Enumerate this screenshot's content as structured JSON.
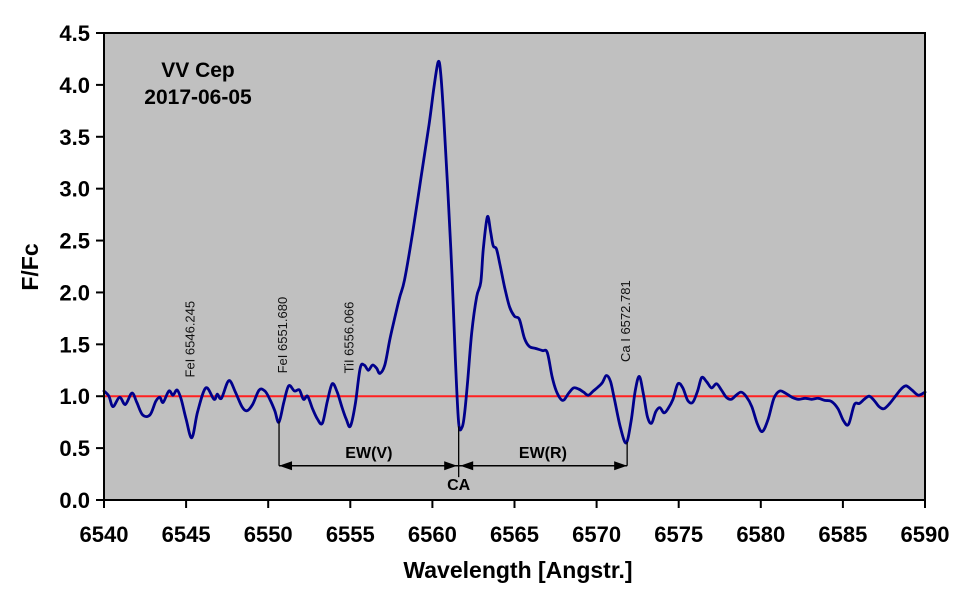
{
  "figure": {
    "title_line1": "VV Cep",
    "title_line2": "2017-06-05",
    "y_axis_label": "F/Fc",
    "x_axis_label": "Wavelength [Angstr.]"
  },
  "chart_data": {
    "type": "line",
    "title": "VV Cep 2017-06-05",
    "xlabel": "Wavelength [Angstr.]",
    "ylabel": "F/Fc",
    "xlim": [
      6540,
      6590
    ],
    "ylim": [
      0.0,
      4.5
    ],
    "grid": false,
    "legend": "none",
    "plot_bg_color": "#c0c0c0",
    "x_tick_values": [
      6540,
      6545,
      6550,
      6555,
      6560,
      6565,
      6570,
      6575,
      6580,
      6585,
      6590
    ],
    "x_tick_labels": [
      "6540",
      "6545",
      "6550",
      "6555",
      "6560",
      "6565",
      "6570",
      "6575",
      "6580",
      "6585",
      "6590"
    ],
    "y_tick_values": [
      0.0,
      0.5,
      1.0,
      1.5,
      2.0,
      2.5,
      3.0,
      3.5,
      4.0,
      4.5
    ],
    "y_tick_labels": [
      "0.0",
      "0.5",
      "1.0",
      "1.5",
      "2.0",
      "2.5",
      "3.0",
      "3.5",
      "4.0",
      "4.5"
    ],
    "continuum": {
      "name": "continuum",
      "y": 1.0,
      "color": "#ff2020"
    },
    "series": [
      {
        "name": "spectrum F/Fc",
        "color": "#00008b",
        "points": [
          [
            6540.0,
            1.05
          ],
          [
            6540.3,
            1.0
          ],
          [
            6540.55,
            0.9
          ],
          [
            6540.95,
            0.99
          ],
          [
            6541.3,
            0.92
          ],
          [
            6541.7,
            1.03
          ],
          [
            6542.0,
            0.94
          ],
          [
            6542.35,
            0.82
          ],
          [
            6542.8,
            0.82
          ],
          [
            6543.15,
            0.95
          ],
          [
            6543.4,
            0.99
          ],
          [
            6543.6,
            0.94
          ],
          [
            6543.95,
            1.05
          ],
          [
            6544.2,
            1.01
          ],
          [
            6544.45,
            1.06
          ],
          [
            6544.7,
            0.97
          ],
          [
            6545.0,
            0.78
          ],
          [
            6545.35,
            0.6
          ],
          [
            6545.7,
            0.85
          ],
          [
            6546.2,
            1.08
          ],
          [
            6546.7,
            0.97
          ],
          [
            6546.9,
            1.02
          ],
          [
            6547.15,
            0.98
          ],
          [
            6547.6,
            1.15
          ],
          [
            6548.0,
            1.04
          ],
          [
            6548.4,
            0.9
          ],
          [
            6548.7,
            0.86
          ],
          [
            6549.05,
            0.92
          ],
          [
            6549.45,
            1.06
          ],
          [
            6549.8,
            1.05
          ],
          [
            6550.1,
            0.97
          ],
          [
            6550.4,
            0.86
          ],
          [
            6550.65,
            0.75
          ],
          [
            6550.95,
            0.94
          ],
          [
            6551.25,
            1.1
          ],
          [
            6551.6,
            1.05
          ],
          [
            6551.9,
            1.06
          ],
          [
            6552.15,
            0.97
          ],
          [
            6552.4,
            1.0
          ],
          [
            6552.7,
            0.88
          ],
          [
            6553.0,
            0.78
          ],
          [
            6553.3,
            0.74
          ],
          [
            6553.6,
            0.95
          ],
          [
            6553.9,
            1.12
          ],
          [
            6554.2,
            1.04
          ],
          [
            6554.5,
            0.89
          ],
          [
            6554.75,
            0.78
          ],
          [
            6555.0,
            0.71
          ],
          [
            6555.3,
            0.92
          ],
          [
            6555.6,
            1.27
          ],
          [
            6555.85,
            1.3
          ],
          [
            6556.1,
            1.25
          ],
          [
            6556.35,
            1.3
          ],
          [
            6556.6,
            1.27
          ],
          [
            6556.8,
            1.22
          ],
          [
            6557.1,
            1.3
          ],
          [
            6557.4,
            1.54
          ],
          [
            6557.7,
            1.75
          ],
          [
            6558.0,
            1.95
          ],
          [
            6558.3,
            2.12
          ],
          [
            6558.8,
            2.58
          ],
          [
            6559.3,
            3.1
          ],
          [
            6559.8,
            3.62
          ],
          [
            6560.1,
            3.98
          ],
          [
            6560.35,
            4.22
          ],
          [
            6560.5,
            4.12
          ],
          [
            6560.7,
            3.66
          ],
          [
            6560.95,
            2.95
          ],
          [
            6561.2,
            2.15
          ],
          [
            6561.4,
            1.35
          ],
          [
            6561.6,
            0.74
          ],
          [
            6561.8,
            0.7
          ],
          [
            6561.95,
            0.82
          ],
          [
            6562.15,
            1.15
          ],
          [
            6562.4,
            1.62
          ],
          [
            6562.7,
            1.96
          ],
          [
            6562.95,
            2.1
          ],
          [
            6563.1,
            2.42
          ],
          [
            6563.35,
            2.73
          ],
          [
            6563.55,
            2.58
          ],
          [
            6563.7,
            2.45
          ],
          [
            6563.9,
            2.42
          ],
          [
            6564.1,
            2.28
          ],
          [
            6564.4,
            2.05
          ],
          [
            6564.7,
            1.86
          ],
          [
            6565.0,
            1.77
          ],
          [
            6565.3,
            1.74
          ],
          [
            6565.6,
            1.56
          ],
          [
            6565.9,
            1.48
          ],
          [
            6566.3,
            1.46
          ],
          [
            6566.7,
            1.44
          ],
          [
            6567.0,
            1.42
          ],
          [
            6567.3,
            1.18
          ],
          [
            6567.6,
            1.03
          ],
          [
            6567.95,
            0.96
          ],
          [
            6568.3,
            1.03
          ],
          [
            6568.6,
            1.08
          ],
          [
            6568.9,
            1.07
          ],
          [
            6569.2,
            1.04
          ],
          [
            6569.5,
            1.01
          ],
          [
            6569.8,
            1.05
          ],
          [
            6570.1,
            1.09
          ],
          [
            6570.35,
            1.13
          ],
          [
            6570.6,
            1.2
          ],
          [
            6570.85,
            1.14
          ],
          [
            6571.1,
            0.96
          ],
          [
            6571.45,
            0.7
          ],
          [
            6571.8,
            0.55
          ],
          [
            6572.1,
            0.76
          ],
          [
            6572.35,
            1.05
          ],
          [
            6572.6,
            1.19
          ],
          [
            6572.85,
            1.02
          ],
          [
            6573.1,
            0.8
          ],
          [
            6573.35,
            0.74
          ],
          [
            6573.6,
            0.85
          ],
          [
            6573.85,
            0.89
          ],
          [
            6574.1,
            0.84
          ],
          [
            6574.35,
            0.88
          ],
          [
            6574.65,
            0.97
          ],
          [
            6574.95,
            1.12
          ],
          [
            6575.25,
            1.08
          ],
          [
            6575.55,
            0.96
          ],
          [
            6575.85,
            0.94
          ],
          [
            6576.15,
            1.05
          ],
          [
            6576.4,
            1.18
          ],
          [
            6576.7,
            1.14
          ],
          [
            6577.0,
            1.08
          ],
          [
            6577.3,
            1.12
          ],
          [
            6577.6,
            1.06
          ],
          [
            6577.9,
            0.99
          ],
          [
            6578.2,
            0.97
          ],
          [
            6578.5,
            1.01
          ],
          [
            6578.8,
            1.04
          ],
          [
            6579.1,
            1.0
          ],
          [
            6579.45,
            0.9
          ],
          [
            6579.8,
            0.73
          ],
          [
            6580.1,
            0.66
          ],
          [
            6580.45,
            0.78
          ],
          [
            6580.8,
            0.98
          ],
          [
            6581.15,
            1.05
          ],
          [
            6581.5,
            1.03
          ],
          [
            6581.9,
            0.99
          ],
          [
            6582.3,
            0.97
          ],
          [
            6582.7,
            0.98
          ],
          [
            6583.1,
            0.97
          ],
          [
            6583.5,
            0.98
          ],
          [
            6583.9,
            0.96
          ],
          [
            6584.3,
            0.95
          ],
          [
            6584.7,
            0.88
          ],
          [
            6585.05,
            0.76
          ],
          [
            6585.35,
            0.73
          ],
          [
            6585.7,
            0.92
          ],
          [
            6586.0,
            0.93
          ],
          [
            6586.3,
            0.97
          ],
          [
            6586.6,
            1.0
          ],
          [
            6586.9,
            0.96
          ],
          [
            6587.2,
            0.9
          ],
          [
            6587.5,
            0.88
          ],
          [
            6587.85,
            0.93
          ],
          [
            6588.2,
            1.0
          ],
          [
            6588.55,
            1.07
          ],
          [
            6588.85,
            1.1
          ],
          [
            6589.2,
            1.06
          ],
          [
            6589.6,
            1.01
          ],
          [
            6590.0,
            1.04
          ]
        ]
      }
    ],
    "annotations": {
      "line_ids": [
        {
          "label": "FeI 6546.245",
          "wl": 6545.2,
          "label_bottom_flux": 1.18
        },
        {
          "label": "FeI 6551.680",
          "wl": 6550.85,
          "label_bottom_flux": 1.22
        },
        {
          "label": "TiI 6556.066",
          "wl": 6554.9,
          "label_bottom_flux": 1.22
        },
        {
          "label": "Ca I 6572.781",
          "wl": 6571.72,
          "label_bottom_flux": 1.33
        }
      ],
      "ew": {
        "v_label": "EW(V)",
        "r_label": "EW(R)",
        "ca_label": "CA",
        "left_wl": 6550.66,
        "center_wl": 6561.6,
        "right_wl": 6571.86,
        "left_line_top_flux": 0.76,
        "center_line_top_flux": 0.71,
        "right_line_top_flux": 0.56,
        "arrow_flux": 0.33,
        "ca_line_bottom_flux": 0.22,
        "labels_flux": 0.405,
        "ca_label_flux": 0.095
      }
    }
  }
}
